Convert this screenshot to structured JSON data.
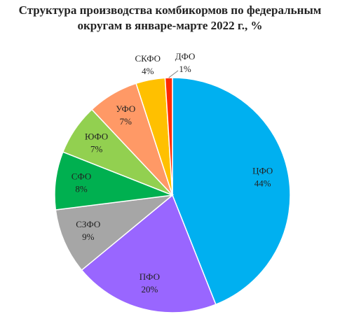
{
  "chart_data": {
    "type": "pie",
    "title": "Структура производства комбикормов по федеральным округам в январе-марте 2022 г., %",
    "categories": [
      "ЦФО",
      "ПФО",
      "СЗФО",
      "СФО",
      "ЮФО",
      "УФО",
      "СКФО",
      "ДФО"
    ],
    "values": [
      44,
      20,
      9,
      8,
      7,
      7,
      4,
      1
    ],
    "value_labels": [
      "44%",
      "20%",
      "9%",
      "8%",
      "7%",
      "7%",
      "4%",
      "1%"
    ],
    "colors": [
      "#00b0f0",
      "#9966ff",
      "#a6a6a6",
      "#00b050",
      "#92d050",
      "#ff9966",
      "#ffc000",
      "#ff2a00"
    ]
  }
}
